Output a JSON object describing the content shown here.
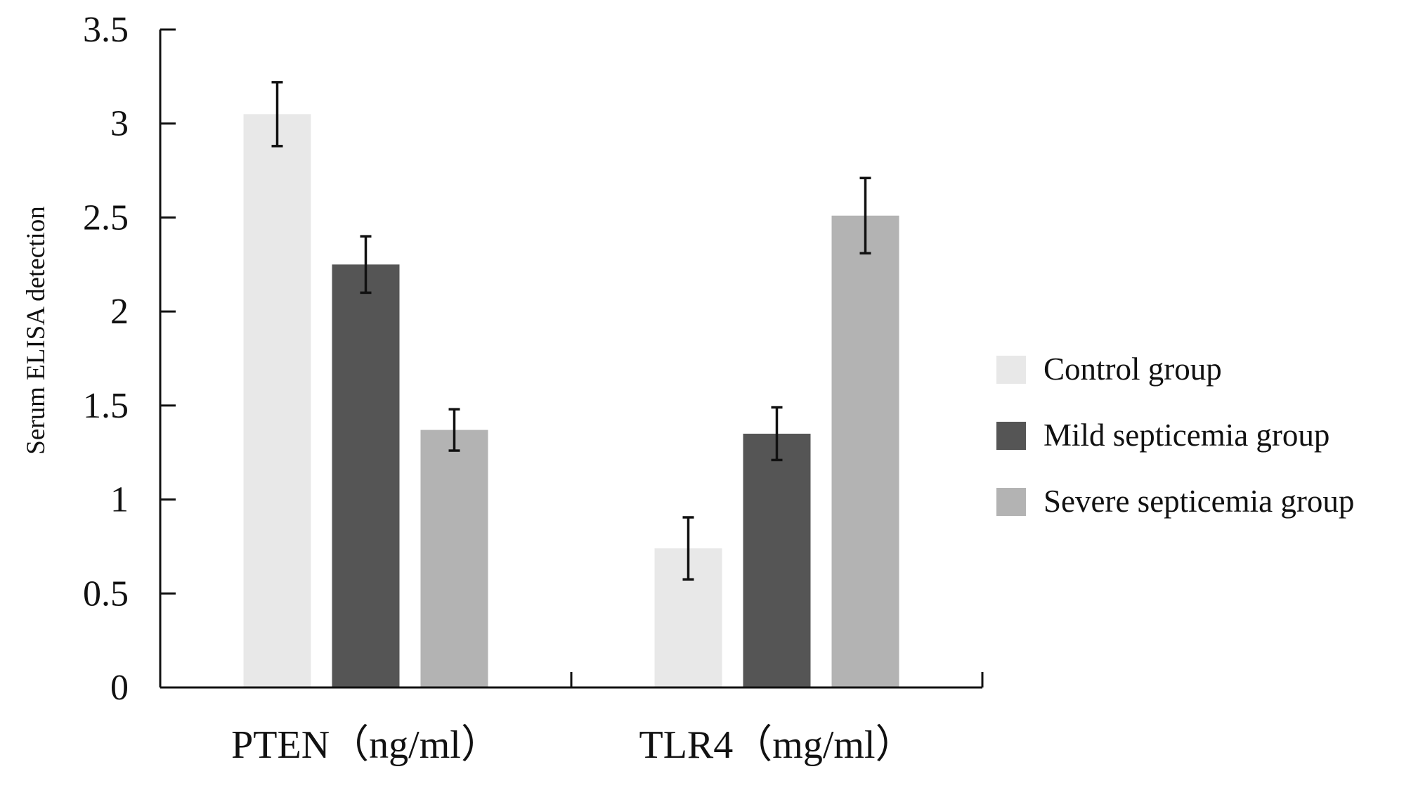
{
  "chart_data": {
    "type": "bar",
    "title": "",
    "xlabel": "",
    "ylabel": "Serum ELISA detection",
    "ylim": [
      0,
      3.5
    ],
    "yticks": [
      "0",
      "0.5",
      "1",
      "1.5",
      "2",
      "2.5",
      "3",
      "3.5"
    ],
    "categories": [
      "PTEN（ng/ml）",
      "TLR4（mg/ml）"
    ],
    "grid": false,
    "legend_position": "right",
    "series": [
      {
        "name": "Control group",
        "color": "#e8e8e8",
        "values": [
          3.05,
          0.74
        ],
        "errors": [
          0.17,
          0.165
        ]
      },
      {
        "name": "Mild septicemia group",
        "color": "#555555",
        "values": [
          2.25,
          1.35
        ],
        "errors": [
          0.15,
          0.14
        ]
      },
      {
        "name": "Severe septicemia group",
        "color": "#b3b3b3",
        "values": [
          1.37,
          2.51
        ],
        "errors": [
          0.11,
          0.2
        ]
      }
    ]
  }
}
